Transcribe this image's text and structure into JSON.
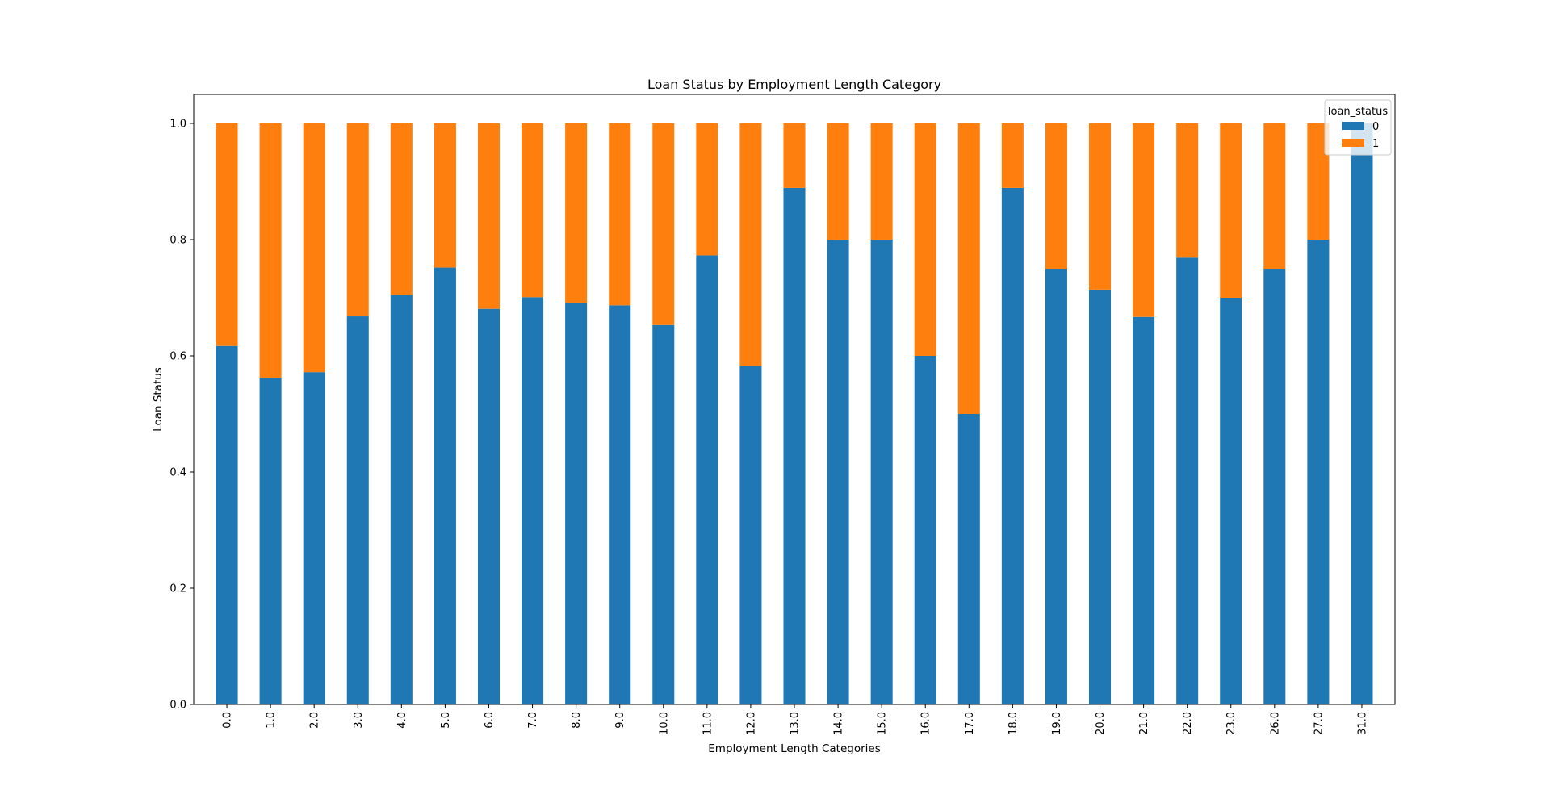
{
  "chart_data": {
    "type": "bar",
    "stacked": true,
    "title": "Loan Status by Employment Length Category",
    "xlabel": "Employment Length Categories",
    "ylabel": "Loan Status",
    "ylim": [
      0,
      1.05
    ],
    "yticks": [
      "0.0",
      "0.2",
      "0.4",
      "0.6",
      "0.8",
      "1.0"
    ],
    "grid": false,
    "legend_position": "top-right",
    "legend_title": "loan_status",
    "categories": [
      "0.0",
      "1.0",
      "2.0",
      "3.0",
      "4.0",
      "5.0",
      "6.0",
      "7.0",
      "8.0",
      "9.0",
      "10.0",
      "11.0",
      "12.0",
      "13.0",
      "14.0",
      "15.0",
      "16.0",
      "17.0",
      "18.0",
      "19.0",
      "20.0",
      "21.0",
      "22.0",
      "23.0",
      "26.0",
      "27.0",
      "31.0"
    ],
    "series": [
      {
        "name": "0",
        "color": "#1f77b4",
        "values": [
          0.617,
          0.562,
          0.572,
          0.668,
          0.705,
          0.752,
          0.681,
          0.701,
          0.691,
          0.687,
          0.653,
          0.773,
          0.583,
          0.889,
          0.8,
          0.8,
          0.6,
          0.5,
          0.889,
          0.75,
          0.714,
          0.667,
          0.769,
          0.7,
          0.75,
          0.8,
          1.0
        ]
      },
      {
        "name": "1",
        "color": "#ff7f0e",
        "values": [
          0.383,
          0.438,
          0.428,
          0.332,
          0.295,
          0.248,
          0.319,
          0.299,
          0.309,
          0.313,
          0.347,
          0.227,
          0.417,
          0.111,
          0.2,
          0.2,
          0.4,
          0.5,
          0.111,
          0.25,
          0.286,
          0.333,
          0.231,
          0.3,
          0.25,
          0.2,
          0.0
        ]
      }
    ]
  }
}
